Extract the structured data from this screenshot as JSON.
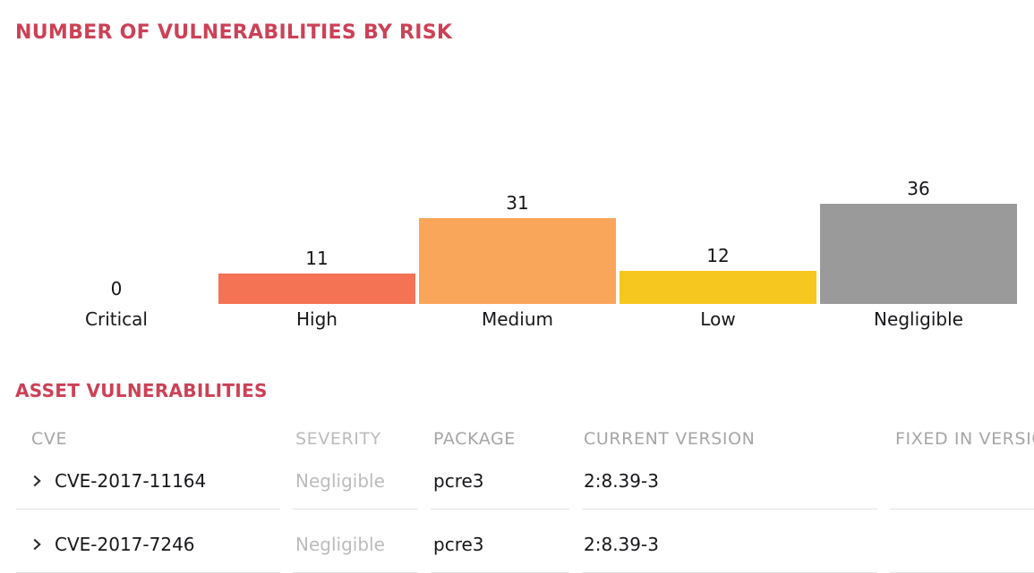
{
  "colors": {
    "accent": "#cc4156",
    "bar_high": "#f47355",
    "bar_medium": "#faa65a",
    "bar_low": "#f6c71f",
    "bar_negligible": "#9a9a9a",
    "table_header_text": "#a6a6a6",
    "severity_muted_text": "#bcbcbc",
    "body_text": "#17171b",
    "row_border": "#e4e4e4"
  },
  "risk_section": {
    "title": "NUMBER OF VULNERABILITIES BY RISK"
  },
  "chart_data": {
    "type": "bar",
    "title": "NUMBER OF VULNERABILITIES BY RISK",
    "categories": [
      "Critical",
      "High",
      "Medium",
      "Low",
      "Negligible"
    ],
    "values": [
      0,
      11,
      31,
      12,
      36
    ],
    "bar_colors": [
      null,
      "#f47355",
      "#faa65a",
      "#f6c71f",
      "#9a9a9a"
    ],
    "value_labels": true,
    "xlabel": "",
    "ylabel": "",
    "ylim": [
      0,
      36
    ],
    "grid": false,
    "legend": false
  },
  "assets_section": {
    "title": "ASSET VULNERABILITIES",
    "table": {
      "headers": [
        "CVE",
        "SEVERITY",
        "PACKAGE",
        "CURRENT VERSION",
        "FIXED IN VERSION"
      ],
      "rows": [
        {
          "cve": "CVE-2017-11164",
          "severity": "Negligible",
          "package": "pcre3",
          "current_version": "2:8.39-3",
          "fixed_in_version": ""
        },
        {
          "cve": "CVE-2017-7246",
          "severity": "Negligible",
          "package": "pcre3",
          "current_version": "2:8.39-3",
          "fixed_in_version": ""
        }
      ]
    }
  }
}
